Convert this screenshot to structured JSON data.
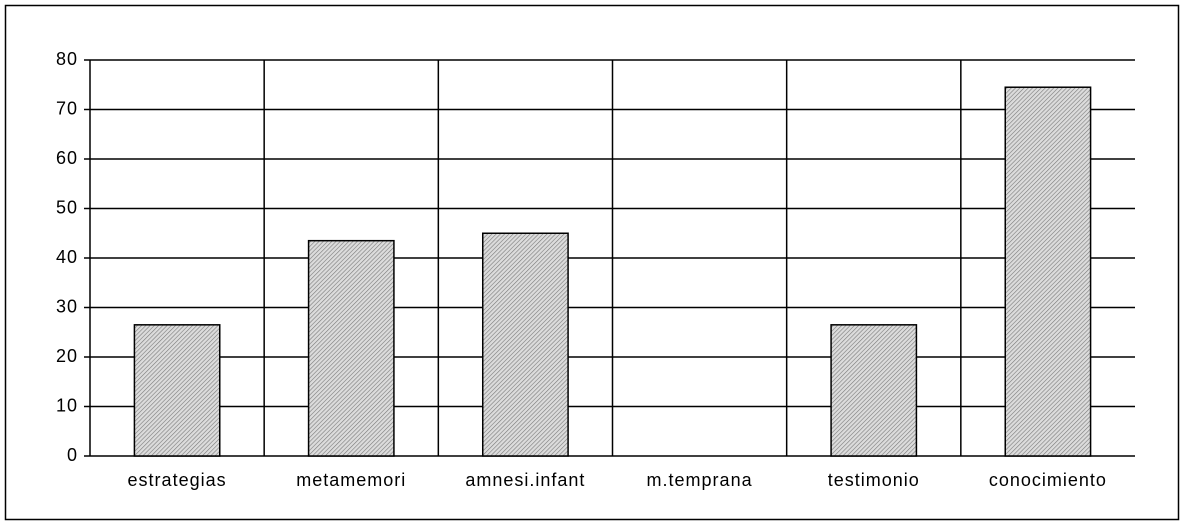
{
  "chart_data": {
    "type": "bar",
    "categories": [
      "estrategias",
      "metamemori",
      "amnesi.infant",
      "m.temprana",
      "testimonio",
      "conocimiento"
    ],
    "values": [
      26.5,
      43.5,
      45,
      0,
      26.5,
      74.5
    ],
    "color": "#c4c4c4",
    "ylim": [
      0,
      80
    ],
    "yticks": [
      0,
      10,
      20,
      30,
      40,
      50,
      60,
      70,
      80
    ],
    "grid": true
  }
}
